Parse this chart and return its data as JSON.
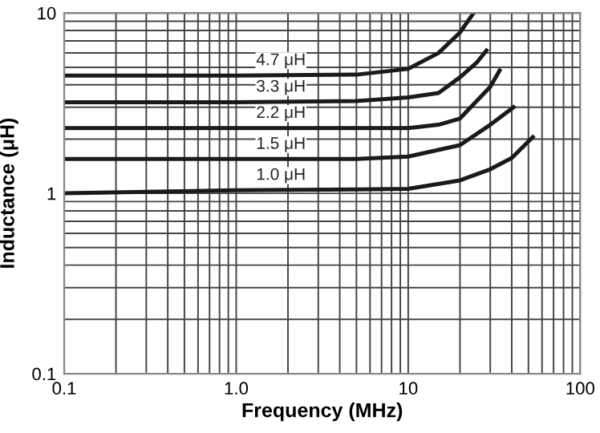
{
  "chart_data": {
    "type": "line",
    "xlabel": "Frequency (MHz)",
    "ylabel": "Inductance (μH)",
    "log": "xy",
    "xlim": [
      0.1,
      100
    ],
    "ylim": [
      0.1,
      10
    ],
    "xticks": [
      0.1,
      {
        "value": 1,
        "label": "1.0"
      },
      10,
      100
    ],
    "yticks": [
      0.1,
      1,
      10
    ],
    "grid": true,
    "marker": "none",
    "line_style": "solid",
    "series": [
      {
        "name": "4.7 μH",
        "color": "#1a1a1a",
        "x": [
          0.1,
          1,
          5,
          10,
          15,
          20,
          24
        ],
        "values": [
          4.5,
          4.5,
          4.55,
          4.9,
          6.0,
          7.8,
          10
        ]
      },
      {
        "name": "3.3 μH",
        "color": "#1a1a1a",
        "x": [
          0.1,
          1,
          5,
          10,
          15,
          20,
          25,
          28.5
        ],
        "values": [
          3.2,
          3.2,
          3.25,
          3.4,
          3.6,
          4.4,
          5.3,
          6.2
        ]
      },
      {
        "name": "2.2 μH",
        "color": "#1a1a1a",
        "x": [
          0.1,
          1,
          5,
          10,
          15,
          20,
          30,
          34
        ],
        "values": [
          2.3,
          2.3,
          2.3,
          2.3,
          2.4,
          2.6,
          3.9,
          4.8
        ]
      },
      {
        "name": "1.5 μH",
        "color": "#1a1a1a",
        "x": [
          0.1,
          1,
          5,
          10,
          20,
          30,
          41
        ],
        "values": [
          1.55,
          1.55,
          1.55,
          1.6,
          1.85,
          2.4,
          3.0
        ]
      },
      {
        "name": "1.0 μH",
        "color": "#1a1a1a",
        "x": [
          0.1,
          1,
          5,
          10,
          20,
          30,
          40,
          53
        ],
        "values": [
          1.0,
          1.04,
          1.05,
          1.06,
          1.18,
          1.36,
          1.57,
          2.05
        ]
      }
    ]
  }
}
